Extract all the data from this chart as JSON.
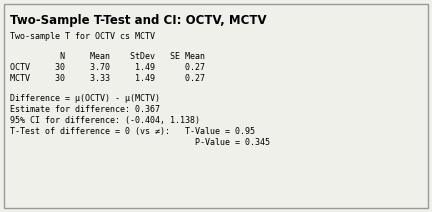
{
  "title": "Two-Sample T-Test and CI: OCTV, MCTV",
  "subtitle": "Two-sample T for OCTV cs MCTV",
  "bg_color": "#f0f0eb",
  "border_color": "#999999",
  "table_header": "          N     Mean    StDev   SE Mean",
  "row1": "OCTV     30     3.70     1.49      0.27",
  "row2": "MCTV     30     3.33     1.49      0.27",
  "diff_line1": "Difference = μ(OCTV) - μ(MCTV)",
  "diff_line2": "Estimate for difference: 0.367",
  "diff_line3": "95% CI for difference: (-0.404, 1.138)",
  "diff_line4a": "T-Test of difference = 0 (vs ≠):   T-Value = 0.95",
  "diff_line4b": "                                     P-Value = 0.345",
  "mono_fontsize": 6.0,
  "title_fontsize": 8.5
}
